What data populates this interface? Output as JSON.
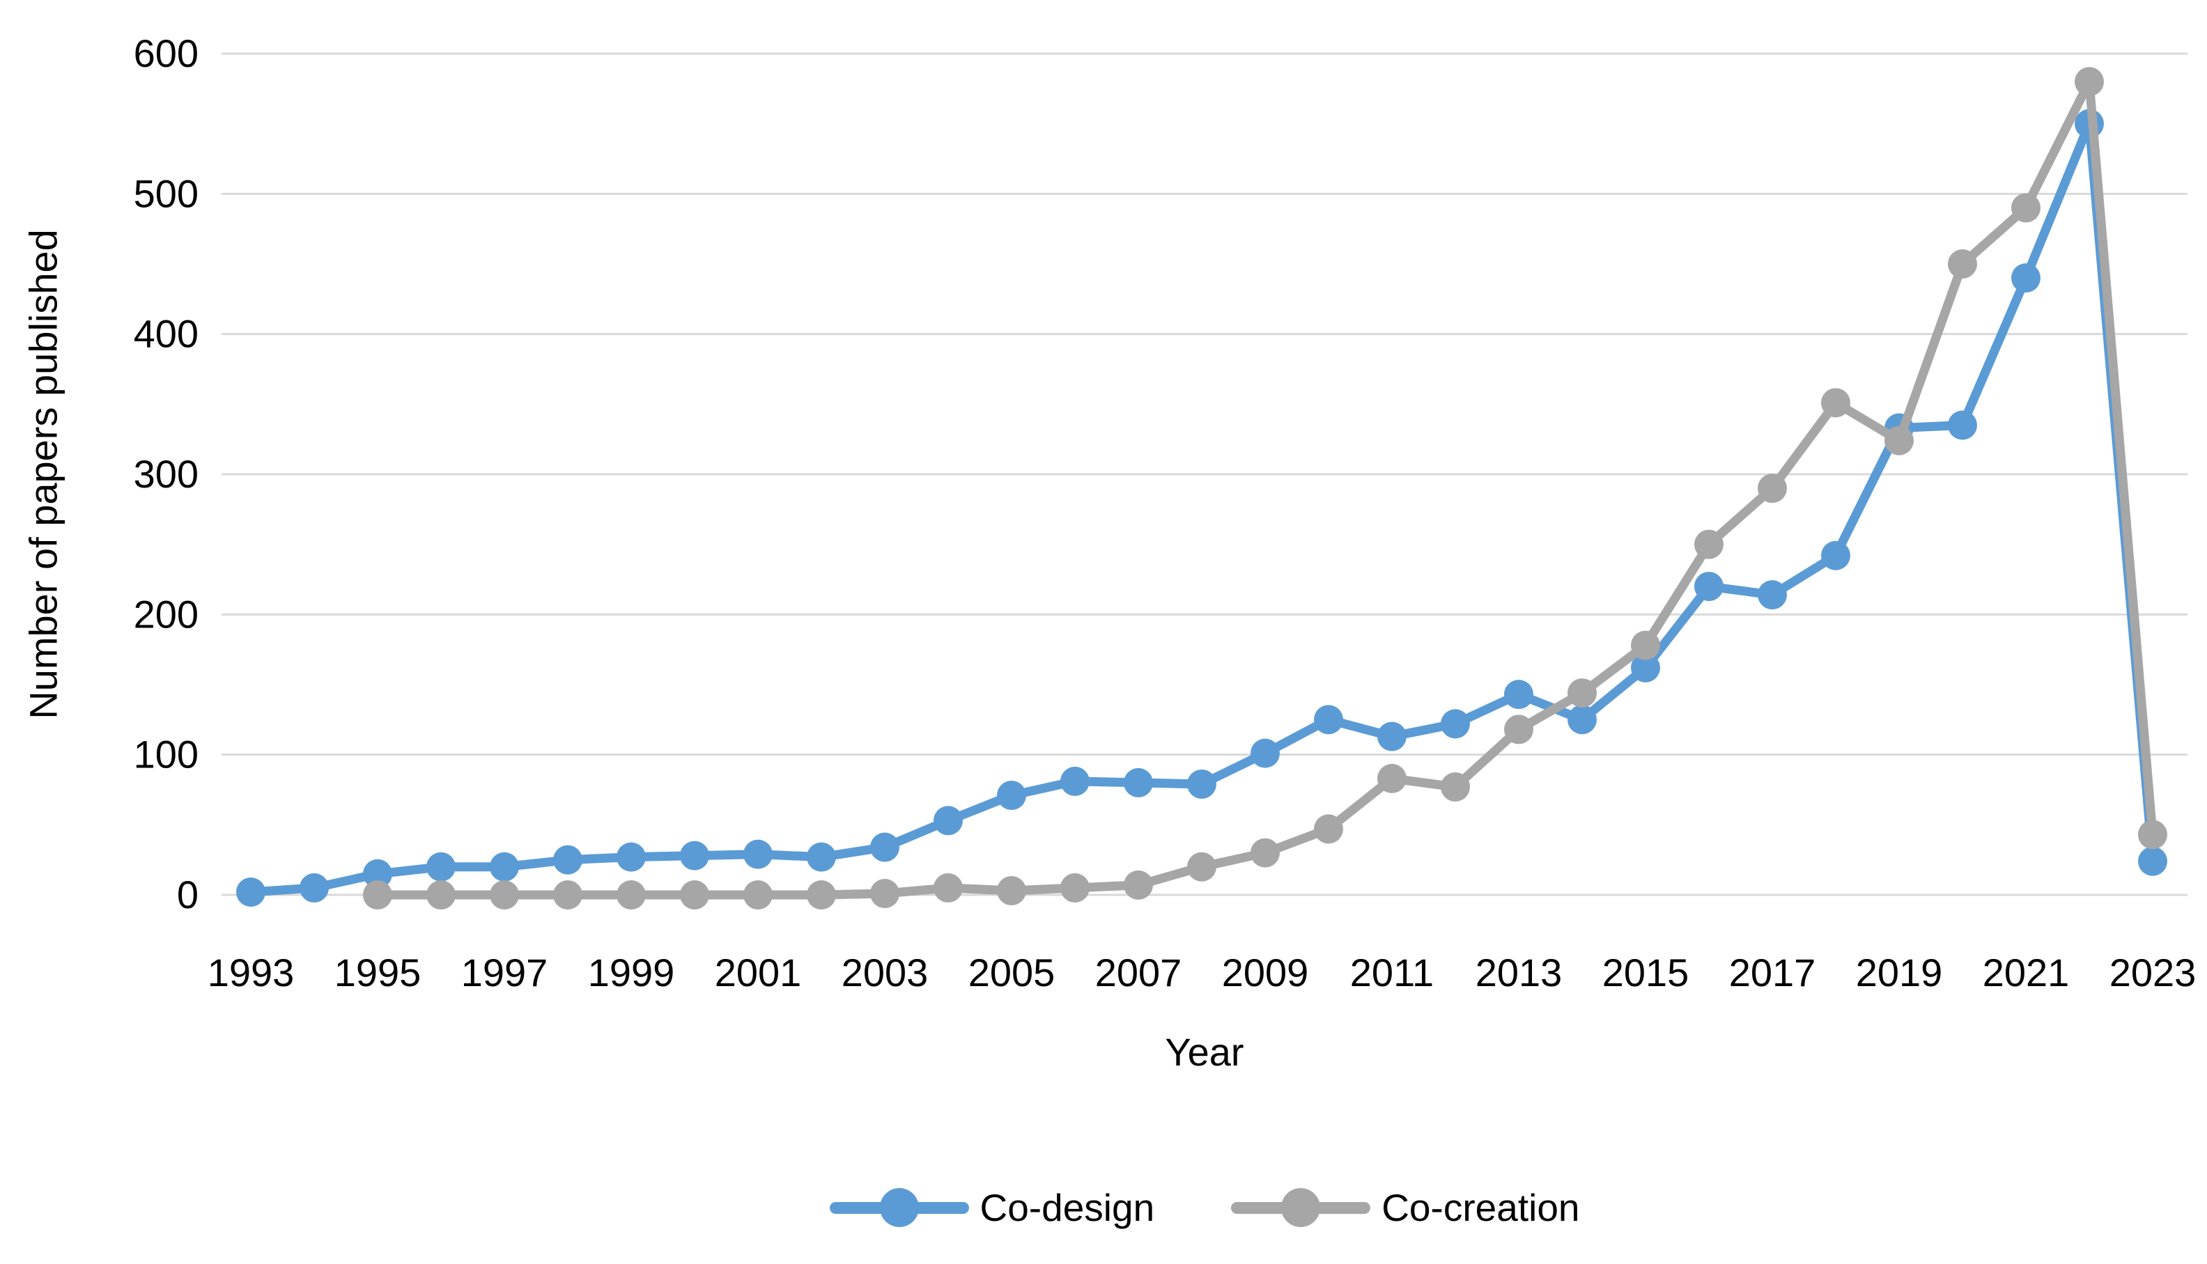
{
  "chart_data": {
    "type": "line",
    "title": "",
    "xlabel": "Year",
    "ylabel": "Number of papers published",
    "x": [
      1993,
      1994,
      1995,
      1996,
      1997,
      1998,
      1999,
      2000,
      2001,
      2002,
      2003,
      2004,
      2005,
      2006,
      2007,
      2008,
      2009,
      2010,
      2011,
      2012,
      2013,
      2014,
      2015,
      2016,
      2017,
      2018,
      2019,
      2020,
      2021,
      2022,
      2023
    ],
    "series": [
      {
        "name": "Co-design",
        "color": "#5B9BD5",
        "values": [
          2,
          5,
          15,
          20,
          20,
          25,
          27,
          28,
          29,
          27,
          34,
          53,
          71,
          81,
          80,
          79,
          101,
          125,
          113,
          122,
          143,
          125,
          162,
          220,
          214,
          242,
          333,
          335,
          440,
          550,
          24
        ]
      },
      {
        "name": "Co-creation",
        "color": "#A6A6A6",
        "values": [
          null,
          null,
          0,
          0,
          0,
          0,
          0,
          0,
          0,
          0,
          1,
          5,
          3,
          5,
          7,
          20,
          30,
          47,
          83,
          77,
          118,
          144,
          178,
          250,
          290,
          351,
          324,
          450,
          490,
          580,
          43
        ]
      }
    ],
    "ylim": [
      0,
      600
    ],
    "ytick_interval": 100,
    "ytick_labels": [
      "0",
      "100",
      "200",
      "300",
      "400",
      "500",
      "600"
    ],
    "xtick_labels": [
      "1993",
      "1995",
      "1997",
      "1999",
      "2001",
      "2003",
      "2005",
      "2007",
      "2009",
      "2011",
      "2013",
      "2015",
      "2017",
      "2019",
      "2021",
      "2023"
    ],
    "grid": "horizontal",
    "gridline_color": "#D9D9D9",
    "text_color": "#000000",
    "legend_position": "bottom"
  }
}
